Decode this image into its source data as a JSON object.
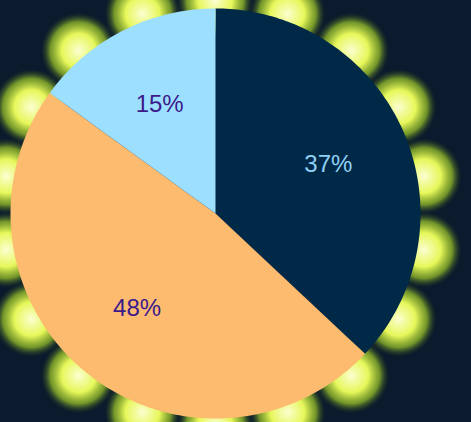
{
  "chart_data": {
    "type": "pie",
    "values": [
      37,
      48,
      15
    ],
    "value_labels": [
      "37%",
      "48%",
      "15%"
    ],
    "colors": [
      "#002847",
      "#fdbb6f",
      "#9ddfff"
    ],
    "data_labels": true
  }
}
